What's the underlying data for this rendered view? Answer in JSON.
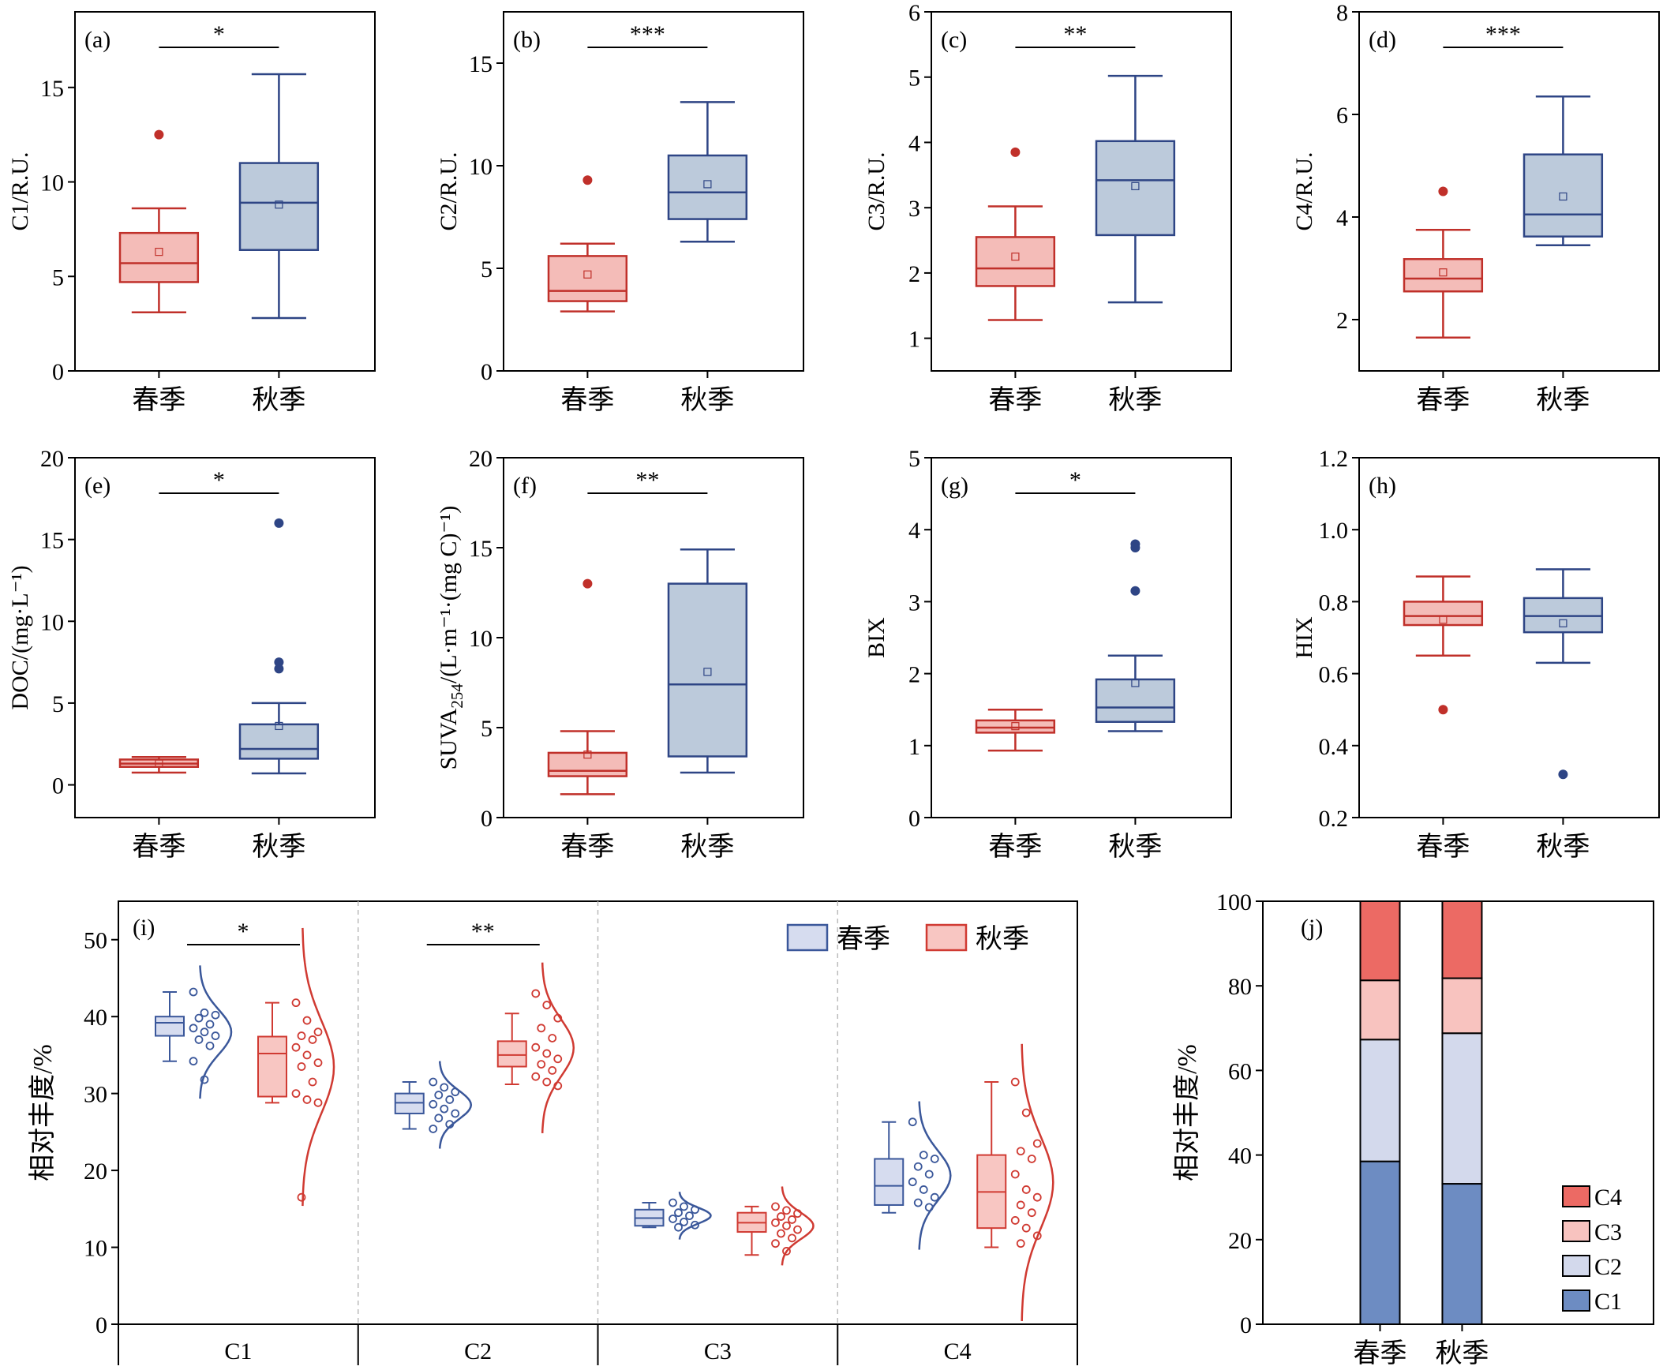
{
  "colors": {
    "spring_stroke": "#c0302a",
    "spring_fill": "#f4bcb8",
    "autumn_stroke": "#2e4585",
    "autumn_fill": "#bccadb",
    "i_first_stroke": "#3a579a",
    "i_first_fill": "#d6dcef",
    "i_second_stroke": "#d03a32",
    "i_second_fill": "#f8c6c2",
    "j_C1": "#6d8cc2",
    "j_C2": "#d3d9ec",
    "j_C3": "#f8c3bf",
    "j_C4": "#ec6a64"
  },
  "chart_data": [
    {
      "type": "box",
      "panel": "(a)",
      "ylabel": "C1/R.U.",
      "ylim": [
        0,
        19
      ],
      "yticks": [
        0,
        5,
        10,
        15
      ],
      "categories": [
        "春季",
        "秋季"
      ],
      "significance": "*",
      "boxes": [
        {
          "q1": 4.7,
          "median": 5.7,
          "q3": 7.3,
          "whisker_low": 3.1,
          "whisker_high": 8.6,
          "mean": 6.3,
          "outliers": [
            12.5
          ]
        },
        {
          "q1": 6.4,
          "median": 8.9,
          "q3": 11.0,
          "whisker_low": 2.8,
          "whisker_high": 15.7,
          "mean": 8.8,
          "outliers": []
        }
      ]
    },
    {
      "type": "box",
      "panel": "(b)",
      "ylabel": "C2/R.U.",
      "ylim": [
        0,
        17.5
      ],
      "yticks": [
        0,
        5,
        10,
        15
      ],
      "categories": [
        "春季",
        "秋季"
      ],
      "significance": "***",
      "boxes": [
        {
          "q1": 3.4,
          "median": 3.9,
          "q3": 5.6,
          "whisker_low": 2.9,
          "whisker_high": 6.2,
          "mean": 4.7,
          "outliers": [
            9.3
          ]
        },
        {
          "q1": 7.4,
          "median": 8.7,
          "q3": 10.5,
          "whisker_low": 6.3,
          "whisker_high": 13.1,
          "mean": 9.1,
          "outliers": []
        }
      ]
    },
    {
      "type": "box",
      "panel": "(c)",
      "ylabel": "C3/R.U.",
      "ylim": [
        0.5,
        6
      ],
      "yticks": [
        1,
        2,
        3,
        4,
        5,
        6
      ],
      "categories": [
        "春季",
        "秋季"
      ],
      "significance": "**",
      "boxes": [
        {
          "q1": 1.8,
          "median": 2.07,
          "q3": 2.55,
          "whisker_low": 1.28,
          "whisker_high": 3.02,
          "mean": 2.25,
          "outliers": [
            3.85
          ]
        },
        {
          "q1": 2.58,
          "median": 3.42,
          "q3": 4.02,
          "whisker_low": 1.55,
          "whisker_high": 5.02,
          "mean": 3.33,
          "outliers": []
        }
      ]
    },
    {
      "type": "box",
      "panel": "(d)",
      "ylabel": "C4/R.U.",
      "ylim": [
        1,
        8
      ],
      "yticks": [
        2,
        4,
        6,
        8
      ],
      "categories": [
        "春季",
        "秋季"
      ],
      "significance": "***",
      "boxes": [
        {
          "q1": 2.55,
          "median": 2.8,
          "q3": 3.18,
          "whisker_low": 1.65,
          "whisker_high": 3.75,
          "mean": 2.92,
          "outliers": [
            4.5
          ]
        },
        {
          "q1": 3.62,
          "median": 4.05,
          "q3": 5.22,
          "whisker_low": 3.45,
          "whisker_high": 6.35,
          "mean": 4.4,
          "outliers": []
        }
      ]
    },
    {
      "type": "box",
      "panel": "(e)",
      "ylabel": "DOC/(mg·L⁻¹)",
      "ylim": [
        -2,
        20
      ],
      "yticks": [
        0,
        5,
        10,
        15,
        20
      ],
      "categories": [
        "春季",
        "秋季"
      ],
      "significance": "*",
      "boxes": [
        {
          "q1": 1.1,
          "median": 1.3,
          "q3": 1.55,
          "whisker_low": 0.75,
          "whisker_high": 1.7,
          "mean": 1.3,
          "outliers": []
        },
        {
          "q1": 1.6,
          "median": 2.2,
          "q3": 3.7,
          "whisker_low": 0.7,
          "whisker_high": 5.0,
          "mean": 3.6,
          "outliers": [
            16.0,
            7.5,
            7.1
          ]
        }
      ]
    },
    {
      "type": "box",
      "panel": "(f)",
      "ylabel": "SUVA",
      "ylabel_sub": "254",
      "ylabel_tail": "/(L·m⁻¹·(mg C)⁻¹)",
      "ylim": [
        0,
        20
      ],
      "yticks": [
        0,
        5,
        10,
        15,
        20
      ],
      "categories": [
        "春季",
        "秋季"
      ],
      "significance": "**",
      "boxes": [
        {
          "q1": 2.3,
          "median": 2.6,
          "q3": 3.6,
          "whisker_low": 1.3,
          "whisker_high": 4.8,
          "mean": 3.5,
          "outliers": [
            13.0
          ]
        },
        {
          "q1": 3.4,
          "median": 7.4,
          "q3": 13.0,
          "whisker_low": 2.5,
          "whisker_high": 14.9,
          "mean": 8.1,
          "outliers": []
        }
      ]
    },
    {
      "type": "box",
      "panel": "(g)",
      "ylabel": "BIX",
      "ylim": [
        0,
        5
      ],
      "yticks": [
        0,
        1,
        2,
        3,
        4,
        5
      ],
      "categories": [
        "春季",
        "秋季"
      ],
      "significance": "*",
      "boxes": [
        {
          "q1": 1.18,
          "median": 1.25,
          "q3": 1.35,
          "whisker_low": 0.93,
          "whisker_high": 1.5,
          "mean": 1.27,
          "outliers": []
        },
        {
          "q1": 1.33,
          "median": 1.53,
          "q3": 1.92,
          "whisker_low": 1.2,
          "whisker_high": 2.25,
          "mean": 1.87,
          "outliers": [
            3.8,
            3.75,
            3.15
          ]
        }
      ]
    },
    {
      "type": "box",
      "panel": "(h)",
      "ylabel": "HIX",
      "ylim": [
        0.2,
        1.2
      ],
      "yticks": [
        0.2,
        0.4,
        0.6,
        0.8,
        1.0,
        1.2
      ],
      "tick_labels": [
        "0.2",
        "0.4",
        "0.6",
        "0.8",
        "1.0",
        "1.2"
      ],
      "categories": [
        "春季",
        "秋季"
      ],
      "significance": "",
      "boxes": [
        {
          "q1": 0.735,
          "median": 0.76,
          "q3": 0.8,
          "whisker_low": 0.65,
          "whisker_high": 0.87,
          "mean": 0.75,
          "outliers": [
            0.5
          ]
        },
        {
          "q1": 0.715,
          "median": 0.76,
          "q3": 0.81,
          "whisker_low": 0.63,
          "whisker_high": 0.89,
          "mean": 0.74,
          "outliers": [
            0.32
          ]
        }
      ]
    },
    {
      "type": "box-scatter-density",
      "panel": "(i)",
      "ylabel": "相对丰度/%",
      "ylim": [
        0,
        55
      ],
      "yticks": [
        0,
        10,
        20,
        30,
        40,
        50
      ],
      "categories": [
        "C1",
        "C2",
        "C3",
        "C4"
      ],
      "legend": [
        "春季",
        "秋季"
      ],
      "significance": [
        "*",
        "**",
        "",
        ""
      ],
      "groups": [
        {
          "a": {
            "q1": 37.5,
            "median": 39.2,
            "q3": 40.0,
            "whisker_low": 34.2,
            "whisker_high": 43.2,
            "points": [
              43.2,
              40.5,
              40.2,
              39.8,
              39.0,
              38.5,
              38.0,
              37.5,
              37.0,
              36.2,
              34.2,
              31.8
            ]
          },
          "b": {
            "q1": 29.6,
            "median": 35.2,
            "q3": 37.4,
            "whisker_low": 28.8,
            "whisker_high": 41.8,
            "points": [
              41.8,
              39.5,
              38.0,
              37.5,
              37.0,
              36.0,
              35.0,
              34.0,
              33.5,
              31.5,
              30.0,
              29.2,
              28.8,
              16.5
            ]
          }
        },
        {
          "a": {
            "q1": 27.4,
            "median": 28.8,
            "q3": 30.0,
            "whisker_low": 25.4,
            "whisker_high": 31.5,
            "points": [
              31.5,
              30.8,
              30.2,
              29.8,
              29.2,
              28.6,
              28.0,
              27.4,
              26.8,
              26.0,
              25.4
            ]
          },
          "b": {
            "q1": 33.5,
            "median": 35.0,
            "q3": 36.8,
            "whisker_low": 31.2,
            "whisker_high": 40.4,
            "points": [
              43.0,
              41.5,
              39.8,
              38.5,
              37.2,
              36.0,
              35.2,
              34.5,
              33.8,
              33.0,
              32.2,
              31.5,
              31.0
            ]
          }
        },
        {
          "a": {
            "q1": 12.8,
            "median": 13.8,
            "q3": 14.9,
            "whisker_low": 12.6,
            "whisker_high": 15.8,
            "points": [
              15.8,
              15.3,
              14.9,
              14.5,
              14.1,
              13.7,
              13.3,
              12.9,
              12.6
            ]
          },
          "b": {
            "q1": 12.0,
            "median": 13.2,
            "q3": 14.5,
            "whisker_low": 9.0,
            "whisker_high": 15.3,
            "points": [
              15.3,
              14.8,
              14.4,
              14.0,
              13.6,
              13.2,
              12.8,
              12.3,
              11.8,
              11.2,
              10.5,
              9.5
            ]
          }
        },
        {
          "a": {
            "q1": 15.5,
            "median": 18.0,
            "q3": 21.5,
            "whisker_low": 14.5,
            "whisker_high": 26.3,
            "points": [
              26.3,
              22.0,
              21.5,
              20.5,
              19.5,
              18.5,
              17.5,
              16.5,
              15.8,
              15.2
            ]
          },
          "b": {
            "q1": 12.5,
            "median": 17.2,
            "q3": 22.0,
            "whisker_low": 10.0,
            "whisker_high": 31.5,
            "points": [
              31.5,
              27.5,
              23.5,
              22.5,
              21.5,
              19.5,
              17.5,
              16.5,
              15.5,
              14.5,
              13.5,
              12.5,
              11.5,
              10.5
            ]
          }
        }
      ]
    },
    {
      "type": "stacked-bar",
      "panel": "(j)",
      "ylabel": "相对丰度/%",
      "ylim": [
        0,
        100
      ],
      "yticks": [
        0,
        20,
        40,
        60,
        80,
        100
      ],
      "categories": [
        "春季",
        "秋季"
      ],
      "series": [
        {
          "name": "C1",
          "values": [
            38.5,
            33.2
          ]
        },
        {
          "name": "C2",
          "values": [
            28.8,
            35.6
          ]
        },
        {
          "name": "C3",
          "values": [
            14.0,
            13.0
          ]
        },
        {
          "name": "C4",
          "values": [
            18.7,
            18.2
          ]
        }
      ],
      "legend": [
        "C4",
        "C3",
        "C2",
        "C1"
      ]
    }
  ]
}
